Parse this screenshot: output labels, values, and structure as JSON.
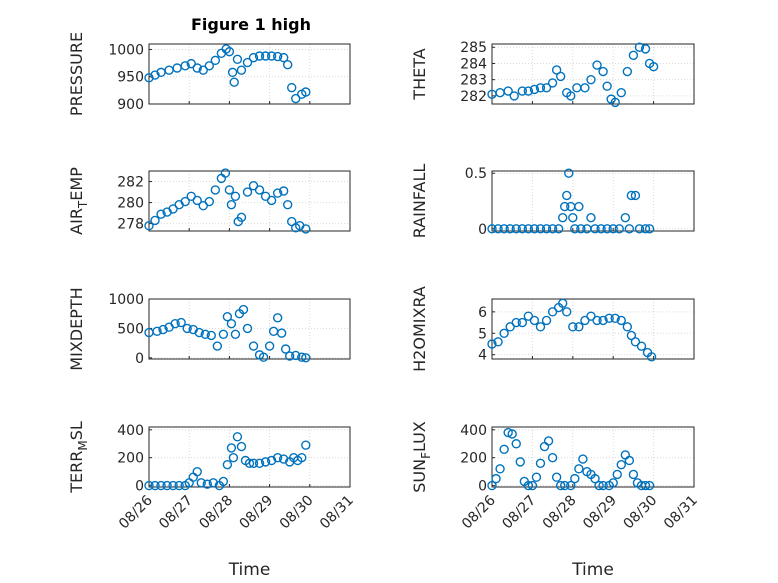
{
  "figure": {
    "title": "Figure 1 high"
  },
  "chart_data": [
    {
      "type": "scatter",
      "ylabel": "PRESSURE",
      "xlabel": "",
      "xlim": [
        0,
        5
      ],
      "ylim": [
        900,
        1010
      ],
      "yticks": [
        900,
        950,
        1000
      ],
      "xticks": [],
      "xticklabels": [],
      "points": [
        [
          0,
          948
        ],
        [
          0.15,
          953
        ],
        [
          0.3,
          958
        ],
        [
          0.5,
          962
        ],
        [
          0.7,
          966
        ],
        [
          0.9,
          970
        ],
        [
          1.05,
          974
        ],
        [
          1.2,
          966
        ],
        [
          1.35,
          962
        ],
        [
          1.5,
          970
        ],
        [
          1.65,
          980
        ],
        [
          1.8,
          993
        ],
        [
          1.92,
          1001
        ],
        [
          2.0,
          996
        ],
        [
          2.08,
          958
        ],
        [
          2.12,
          940
        ],
        [
          2.2,
          982
        ],
        [
          2.3,
          962
        ],
        [
          2.45,
          976
        ],
        [
          2.6,
          985
        ],
        [
          2.75,
          988
        ],
        [
          2.9,
          988
        ],
        [
          3.05,
          988
        ],
        [
          3.2,
          987
        ],
        [
          3.35,
          985
        ],
        [
          3.45,
          972
        ],
        [
          3.55,
          930
        ],
        [
          3.65,
          910
        ],
        [
          3.8,
          918
        ],
        [
          3.9,
          922
        ]
      ],
      "marker_color": "#0072bd",
      "grid": true
    },
    {
      "type": "scatter",
      "ylabel": "THETA",
      "xlabel": "",
      "xlim": [
        0,
        5
      ],
      "ylim": [
        281.5,
        285.2
      ],
      "yticks": [
        282,
        283,
        284,
        285
      ],
      "xticks": [],
      "xticklabels": [],
      "points": [
        [
          0,
          282.1
        ],
        [
          0.2,
          282.2
        ],
        [
          0.4,
          282.3
        ],
        [
          0.55,
          282.0
        ],
        [
          0.75,
          282.3
        ],
        [
          0.9,
          282.3
        ],
        [
          1.05,
          282.4
        ],
        [
          1.2,
          282.5
        ],
        [
          1.35,
          282.5
        ],
        [
          1.5,
          282.8
        ],
        [
          1.6,
          283.6
        ],
        [
          1.7,
          283.2
        ],
        [
          1.85,
          282.2
        ],
        [
          1.95,
          282.0
        ],
        [
          2.1,
          282.5
        ],
        [
          2.3,
          282.5
        ],
        [
          2.45,
          283.0
        ],
        [
          2.6,
          283.9
        ],
        [
          2.75,
          283.5
        ],
        [
          2.85,
          282.6
        ],
        [
          2.95,
          281.8
        ],
        [
          3.05,
          281.6
        ],
        [
          3.2,
          282.2
        ],
        [
          3.35,
          283.5
        ],
        [
          3.5,
          284.5
        ],
        [
          3.65,
          285.0
        ],
        [
          3.8,
          284.9
        ],
        [
          3.9,
          284.0
        ],
        [
          4.0,
          283.8
        ]
      ],
      "marker_color": "#0072bd",
      "grid": true
    },
    {
      "type": "scatter",
      "ylabel": "AIR_TEMP",
      "xlabel": "",
      "xlim": [
        0,
        5
      ],
      "ylim": [
        277.3,
        283
      ],
      "yticks": [
        278,
        280,
        282
      ],
      "xticks": [],
      "xticklabels": [],
      "points": [
        [
          0,
          277.8
        ],
        [
          0.15,
          278.3
        ],
        [
          0.3,
          278.9
        ],
        [
          0.45,
          279.1
        ],
        [
          0.6,
          279.4
        ],
        [
          0.75,
          279.8
        ],
        [
          0.9,
          280.1
        ],
        [
          1.05,
          280.6
        ],
        [
          1.2,
          280.2
        ],
        [
          1.35,
          279.7
        ],
        [
          1.5,
          280.1
        ],
        [
          1.65,
          281.2
        ],
        [
          1.8,
          282.3
        ],
        [
          1.9,
          282.8
        ],
        [
          2.0,
          281.2
        ],
        [
          2.05,
          279.8
        ],
        [
          2.15,
          280.6
        ],
        [
          2.22,
          278.2
        ],
        [
          2.3,
          278.6
        ],
        [
          2.45,
          281.0
        ],
        [
          2.6,
          281.6
        ],
        [
          2.75,
          281.2
        ],
        [
          2.9,
          280.6
        ],
        [
          3.05,
          280.2
        ],
        [
          3.2,
          280.9
        ],
        [
          3.35,
          281.1
        ],
        [
          3.45,
          279.8
        ],
        [
          3.55,
          278.2
        ],
        [
          3.65,
          277.6
        ],
        [
          3.75,
          277.8
        ],
        [
          3.9,
          277.5
        ]
      ],
      "marker_color": "#0072bd",
      "grid": true
    },
    {
      "type": "scatter",
      "ylabel": "RAINFALL",
      "xlabel": "",
      "xlim": [
        0,
        5
      ],
      "ylim": [
        -0.02,
        0.52
      ],
      "yticks": [
        0,
        0.5
      ],
      "xticks": [],
      "xticklabels": [],
      "points": [
        [
          0,
          0
        ],
        [
          0.15,
          0
        ],
        [
          0.3,
          0
        ],
        [
          0.45,
          0
        ],
        [
          0.6,
          0
        ],
        [
          0.75,
          0
        ],
        [
          0.9,
          0
        ],
        [
          1.05,
          0
        ],
        [
          1.2,
          0
        ],
        [
          1.35,
          0
        ],
        [
          1.5,
          0
        ],
        [
          1.65,
          0
        ],
        [
          1.75,
          0.1
        ],
        [
          1.8,
          0.2
        ],
        [
          1.85,
          0.3
        ],
        [
          1.9,
          0.5
        ],
        [
          1.95,
          0.2
        ],
        [
          2.0,
          0.1
        ],
        [
          2.05,
          0
        ],
        [
          2.15,
          0.2
        ],
        [
          2.2,
          0
        ],
        [
          2.35,
          0
        ],
        [
          2.45,
          0.1
        ],
        [
          2.55,
          0
        ],
        [
          2.7,
          0
        ],
        [
          2.85,
          0
        ],
        [
          3.0,
          0
        ],
        [
          3.15,
          0
        ],
        [
          3.3,
          0.1
        ],
        [
          3.4,
          0
        ],
        [
          3.45,
          0.3
        ],
        [
          3.55,
          0.3
        ],
        [
          3.65,
          0
        ],
        [
          3.8,
          0
        ],
        [
          3.9,
          0
        ]
      ],
      "marker_color": "#0072bd",
      "grid": true
    },
    {
      "type": "scatter",
      "ylabel": "MIXDEPTH",
      "xlabel": "",
      "xlim": [
        0,
        5
      ],
      "ylim": [
        -20,
        1000
      ],
      "yticks": [
        0,
        500,
        1000
      ],
      "xticks": [],
      "xticklabels": [],
      "points": [
        [
          0,
          430
        ],
        [
          0.2,
          450
        ],
        [
          0.35,
          480
        ],
        [
          0.5,
          520
        ],
        [
          0.65,
          580
        ],
        [
          0.8,
          600
        ],
        [
          0.95,
          500
        ],
        [
          1.1,
          480
        ],
        [
          1.25,
          430
        ],
        [
          1.4,
          400
        ],
        [
          1.55,
          380
        ],
        [
          1.7,
          200
        ],
        [
          1.85,
          400
        ],
        [
          1.95,
          700
        ],
        [
          2.05,
          580
        ],
        [
          2.15,
          400
        ],
        [
          2.25,
          750
        ],
        [
          2.35,
          820
        ],
        [
          2.45,
          500
        ],
        [
          2.6,
          200
        ],
        [
          2.75,
          50
        ],
        [
          2.85,
          10
        ],
        [
          3.0,
          200
        ],
        [
          3.1,
          450
        ],
        [
          3.2,
          680
        ],
        [
          3.3,
          420
        ],
        [
          3.4,
          150
        ],
        [
          3.5,
          30
        ],
        [
          3.65,
          40
        ],
        [
          3.8,
          10
        ],
        [
          3.9,
          0
        ]
      ],
      "marker_color": "#0072bd",
      "grid": true
    },
    {
      "type": "scatter",
      "ylabel": "H2OMIXRA",
      "xlabel": "",
      "xlim": [
        0,
        5
      ],
      "ylim": [
        3.8,
        6.6
      ],
      "yticks": [
        4,
        5,
        6
      ],
      "xticks": [],
      "xticklabels": [],
      "points": [
        [
          0,
          4.5
        ],
        [
          0.15,
          4.6
        ],
        [
          0.3,
          5.0
        ],
        [
          0.45,
          5.3
        ],
        [
          0.6,
          5.5
        ],
        [
          0.75,
          5.5
        ],
        [
          0.9,
          5.8
        ],
        [
          1.05,
          5.6
        ],
        [
          1.2,
          5.3
        ],
        [
          1.35,
          5.6
        ],
        [
          1.5,
          6.0
        ],
        [
          1.65,
          6.2
        ],
        [
          1.75,
          6.4
        ],
        [
          1.85,
          6.0
        ],
        [
          2.0,
          5.3
        ],
        [
          2.15,
          5.3
        ],
        [
          2.3,
          5.6
        ],
        [
          2.45,
          5.8
        ],
        [
          2.6,
          5.6
        ],
        [
          2.75,
          5.6
        ],
        [
          2.9,
          5.7
        ],
        [
          3.05,
          5.7
        ],
        [
          3.2,
          5.6
        ],
        [
          3.35,
          5.3
        ],
        [
          3.45,
          4.9
        ],
        [
          3.55,
          4.6
        ],
        [
          3.7,
          4.4
        ],
        [
          3.85,
          4.1
        ],
        [
          3.95,
          3.9
        ]
      ],
      "marker_color": "#0072bd",
      "grid": true
    },
    {
      "type": "scatter",
      "ylabel": "TERR_MSL",
      "xlabel": "Time",
      "xlim": [
        0,
        5
      ],
      "ylim": [
        -10,
        420
      ],
      "yticks": [
        0,
        200,
        400
      ],
      "xticks": [
        0,
        1,
        2,
        3,
        4,
        5
      ],
      "xticklabels": [
        "08/26",
        "08/27",
        "08/28",
        "08/29",
        "08/30",
        "08/31"
      ],
      "points": [
        [
          0,
          0
        ],
        [
          0.15,
          0
        ],
        [
          0.3,
          0
        ],
        [
          0.45,
          0
        ],
        [
          0.6,
          0
        ],
        [
          0.75,
          0
        ],
        [
          0.9,
          0
        ],
        [
          1.0,
          20
        ],
        [
          1.1,
          60
        ],
        [
          1.2,
          100
        ],
        [
          1.3,
          20
        ],
        [
          1.45,
          10
        ],
        [
          1.6,
          20
        ],
        [
          1.75,
          0
        ],
        [
          1.85,
          30
        ],
        [
          1.95,
          150
        ],
        [
          2.05,
          270
        ],
        [
          2.1,
          200
        ],
        [
          2.2,
          350
        ],
        [
          2.3,
          280
        ],
        [
          2.4,
          180
        ],
        [
          2.5,
          160
        ],
        [
          2.6,
          160
        ],
        [
          2.75,
          160
        ],
        [
          2.9,
          170
        ],
        [
          3.05,
          180
        ],
        [
          3.2,
          200
        ],
        [
          3.35,
          190
        ],
        [
          3.5,
          170
        ],
        [
          3.6,
          200
        ],
        [
          3.7,
          180
        ],
        [
          3.8,
          200
        ],
        [
          3.9,
          290
        ]
      ],
      "marker_color": "#0072bd",
      "grid": true
    },
    {
      "type": "scatter",
      "ylabel": "SUN_FLUX",
      "xlabel": "Time",
      "xlim": [
        0,
        5
      ],
      "ylim": [
        -10,
        420
      ],
      "yticks": [
        0,
        200,
        400
      ],
      "xticks": [
        0,
        1,
        2,
        3,
        4,
        5
      ],
      "xticklabels": [
        "08/26",
        "08/27",
        "08/28",
        "08/29",
        "08/30",
        "08/31"
      ],
      "points": [
        [
          0,
          0
        ],
        [
          0.1,
          50
        ],
        [
          0.2,
          120
        ],
        [
          0.3,
          260
        ],
        [
          0.4,
          380
        ],
        [
          0.5,
          370
        ],
        [
          0.6,
          300
        ],
        [
          0.7,
          170
        ],
        [
          0.8,
          30
        ],
        [
          0.9,
          0
        ],
        [
          1.0,
          0
        ],
        [
          1.1,
          60
        ],
        [
          1.2,
          160
        ],
        [
          1.3,
          280
        ],
        [
          1.4,
          320
        ],
        [
          1.5,
          200
        ],
        [
          1.6,
          60
        ],
        [
          1.7,
          0
        ],
        [
          1.8,
          0
        ],
        [
          1.95,
          0
        ],
        [
          2.05,
          50
        ],
        [
          2.15,
          120
        ],
        [
          2.25,
          190
        ],
        [
          2.35,
          100
        ],
        [
          2.45,
          80
        ],
        [
          2.55,
          50
        ],
        [
          2.65,
          0
        ],
        [
          2.75,
          0
        ],
        [
          2.9,
          0
        ],
        [
          3.0,
          20
        ],
        [
          3.1,
          80
        ],
        [
          3.2,
          150
        ],
        [
          3.3,
          220
        ],
        [
          3.4,
          180
        ],
        [
          3.5,
          80
        ],
        [
          3.6,
          20
        ],
        [
          3.7,
          0
        ],
        [
          3.8,
          0
        ],
        [
          3.9,
          0
        ]
      ],
      "marker_color": "#0072bd",
      "grid": true
    }
  ]
}
